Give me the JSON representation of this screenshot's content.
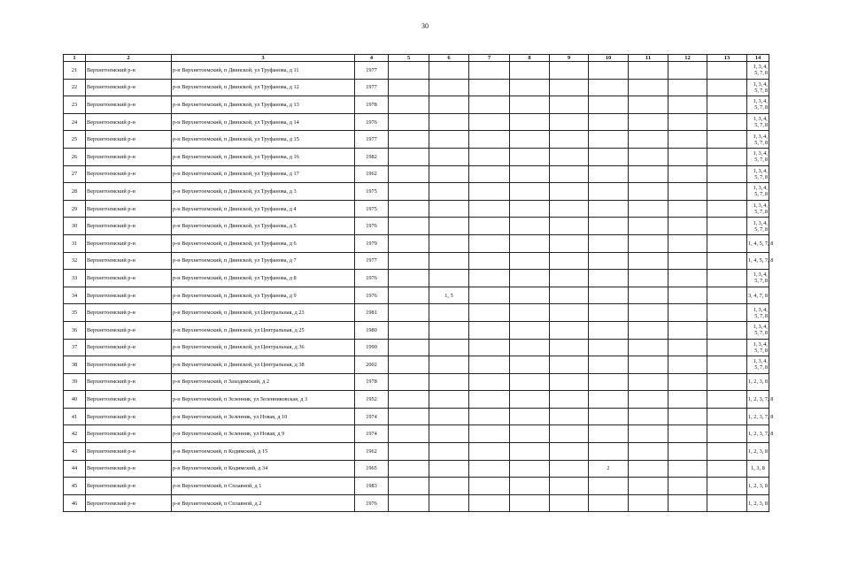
{
  "page_number": "30",
  "columns": [
    "1",
    "2",
    "3",
    "4",
    "5",
    "6",
    "7",
    "8",
    "9",
    "10",
    "11",
    "12",
    "13",
    "14"
  ],
  "rows": [
    [
      "21",
      "Верхнетоемский р-н",
      "р-н Верхнетоемский, п Двинской, ул Труфанова, д 11",
      "1977",
      "",
      "",
      "",
      "",
      "",
      "",
      "",
      "",
      "",
      "1, 3, 4, 5, 7, 8"
    ],
    [
      "22",
      "Верхнетоемский р-н",
      "р-н Верхнетоемский, п Двинской, ул Труфанова, д 12",
      "1977",
      "",
      "",
      "",
      "",
      "",
      "",
      "",
      "",
      "",
      "1, 3, 4, 5, 7, 8"
    ],
    [
      "23",
      "Верхнетоемский р-н",
      "р-н Верхнетоемский, п Двинской, ул Труфанова, д 13",
      "1978",
      "",
      "",
      "",
      "",
      "",
      "",
      "",
      "",
      "",
      "1, 3, 4, 5, 7, 8"
    ],
    [
      "24",
      "Верхнетоемский р-н",
      "р-н Верхнетоемский, п Двинской, ул Труфанова, д 14",
      "1976",
      "",
      "",
      "",
      "",
      "",
      "",
      "",
      "",
      "",
      "1, 3, 4, 5, 7, 8"
    ],
    [
      "25",
      "Верхнетоемский р-н",
      "р-н Верхнетоемский, п Двинской, ул Труфанова, д 15",
      "1977",
      "",
      "",
      "",
      "",
      "",
      "",
      "",
      "",
      "",
      "1, 3, 4, 5, 7, 8"
    ],
    [
      "26",
      "Верхнетоемский р-н",
      "р-н Верхнетоемский, п Двинской, ул Труфанова, д 16",
      "1982",
      "",
      "",
      "",
      "",
      "",
      "",
      "",
      "",
      "",
      "1, 3, 4, 5, 7, 8"
    ],
    [
      "27",
      "Верхнетоемский р-н",
      "р-н Верхнетоемский, п Двинской, ул Труфанова, д 17",
      "1962",
      "",
      "",
      "",
      "",
      "",
      "",
      "",
      "",
      "",
      "1, 3, 4, 5, 7, 8"
    ],
    [
      "28",
      "Верхнетоемский р-н",
      "р-н Верхнетоемский, п Двинской, ул Труфанова, д 3",
      "1975",
      "",
      "",
      "",
      "",
      "",
      "",
      "",
      "",
      "",
      "1, 3, 4, 5, 7, 8"
    ],
    [
      "29",
      "Верхнетоемский р-н",
      "р-н Верхнетоемский, п Двинской, ул Труфанова, д 4",
      "1975",
      "",
      "",
      "",
      "",
      "",
      "",
      "",
      "",
      "",
      "1, 3, 4, 5, 7, 8"
    ],
    [
      "30",
      "Верхнетоемский р-н",
      "р-н Верхнетоемский, п Двинской, ул Труфанова, д 5",
      "1976",
      "",
      "",
      "",
      "",
      "",
      "",
      "",
      "",
      "",
      "1, 3, 4, 5, 7, 8"
    ],
    [
      "31",
      "Верхнетоемский р-н",
      "р-н Верхнетоемский, п Двинской, ул Труфанова, д 6",
      "1979",
      "",
      "",
      "",
      "",
      "",
      "",
      "",
      "",
      "",
      "1, 4, 5, 7, 8"
    ],
    [
      "32",
      "Верхнетоемский р-н",
      "р-н Верхнетоемский, п Двинской, ул Труфанова, д 7",
      "1977",
      "",
      "",
      "",
      "",
      "",
      "",
      "",
      "",
      "",
      "1, 4, 5, 7, 8"
    ],
    [
      "33",
      "Верхнетоемский р-н",
      "р-н Верхнетоемский, п Двинской, ул Труфанова, д 8",
      "1976",
      "",
      "",
      "",
      "",
      "",
      "",
      "",
      "",
      "",
      "1, 3, 4, 5, 7, 8"
    ],
    [
      "34",
      "Верхнетоемский р-н",
      "р-н Верхнетоемский, п Двинской, ул Труфанова, д 9",
      "1976",
      "",
      "1, 5",
      "",
      "",
      "",
      "",
      "",
      "",
      "",
      "3, 4, 7, 8"
    ],
    [
      "35",
      "Верхнетоемский р-н",
      "р-н Верхнетоемский, п Двинской, ул Центральная, д 23",
      "1981",
      "",
      "",
      "",
      "",
      "",
      "",
      "",
      "",
      "",
      "1, 3, 4, 5, 7, 8"
    ],
    [
      "36",
      "Верхнетоемский р-н",
      "р-н Верхнетоемский, п Двинской, ул Центральная, д 25",
      "1980",
      "",
      "",
      "",
      "",
      "",
      "",
      "",
      "",
      "",
      "1, 3, 4, 5, 7, 8"
    ],
    [
      "37",
      "Верхнетоемский р-н",
      "р-н Верхнетоемский, п Двинской, ул Центральная, д 36",
      "1990",
      "",
      "",
      "",
      "",
      "",
      "",
      "",
      "",
      "",
      "1, 3, 4, 5, 7, 8"
    ],
    [
      "38",
      "Верхнетоемский р-н",
      "р-н Верхнетоемский, п Двинской, ул Центральная, д 38",
      "2002",
      "",
      "",
      "",
      "",
      "",
      "",
      "",
      "",
      "",
      "1, 3, 4, 5, 7, 8"
    ],
    [
      "39",
      "Верхнетоемский р-н",
      "р-н Верхнетоемский, п Заходимский, д 2",
      "1978",
      "",
      "",
      "",
      "",
      "",
      "",
      "",
      "",
      "",
      "1, 2, 3, 8"
    ],
    [
      "40",
      "Верхнетоемский р-н",
      "р-н Верхнетоемский, п Зеленник, ул Зеленниковская, д 3",
      "1952",
      "",
      "",
      "",
      "",
      "",
      "",
      "",
      "",
      "",
      "1, 2, 3, 7, 8"
    ],
    [
      "41",
      "Верхнетоемский р-н",
      "р-н Верхнетоемский, п Зеленник, ул Новая, д 10",
      "1974",
      "",
      "",
      "",
      "",
      "",
      "",
      "",
      "",
      "",
      "1, 2, 3, 7, 8"
    ],
    [
      "42",
      "Верхнетоемский р-н",
      "р-н Верхнетоемский, п Зеленник, ул Новая, д 9",
      "1974",
      "",
      "",
      "",
      "",
      "",
      "",
      "",
      "",
      "",
      "1, 2, 3, 7, 8"
    ],
    [
      "43",
      "Верхнетоемский р-н",
      "р-н Верхнетоемский, п Кодимский, д 15",
      "1962",
      "",
      "",
      "",
      "",
      "",
      "",
      "",
      "",
      "",
      "1, 2, 3, 8"
    ],
    [
      "44",
      "Верхнетоемский р-н",
      "р-н Верхнетоемский, п Кодимский, д 34",
      "1965",
      "",
      "",
      "",
      "",
      "",
      "2",
      "",
      "",
      "",
      "1, 3, 8"
    ],
    [
      "45",
      "Верхнетоемский р-н",
      "р-н Верхнетоемский, п Сплавной, д 1",
      "1983",
      "",
      "",
      "",
      "",
      "",
      "",
      "",
      "",
      "",
      "1, 2, 3, 8"
    ],
    [
      "46",
      "Верхнетоемский р-н",
      "р-н Верхнетоемский, п Сплавной, д 2",
      "1976",
      "",
      "",
      "",
      "",
      "",
      "",
      "",
      "",
      "",
      "1, 2, 3, 8"
    ]
  ]
}
